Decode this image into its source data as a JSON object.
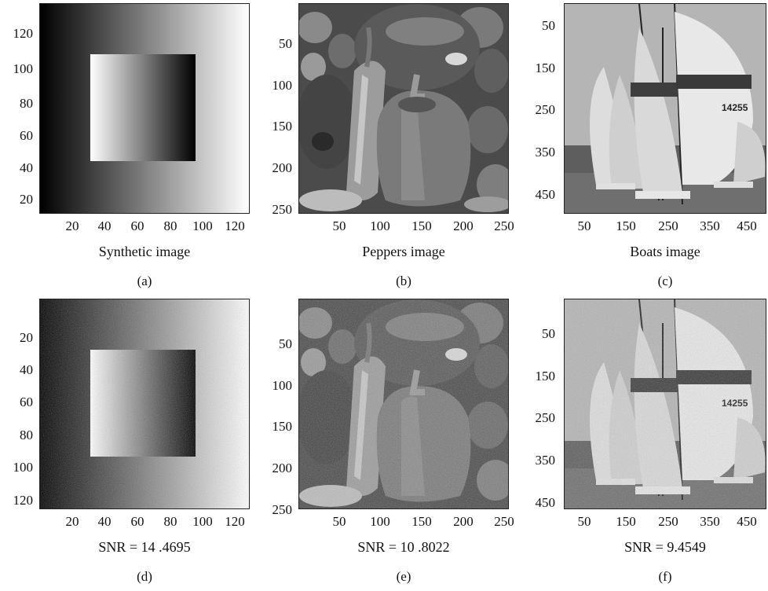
{
  "panels": [
    {
      "id": "a",
      "caption": "Synthetic image",
      "label": "(a)",
      "yticks": [
        "120",
        "100",
        "80",
        "60",
        "40",
        "20"
      ],
      "xticks": [
        "20",
        "40",
        "60",
        "80",
        "100",
        "120"
      ]
    },
    {
      "id": "b",
      "caption": "Peppers image",
      "label": "(b)",
      "yticks": [
        "50",
        "100",
        "150",
        "200",
        "250"
      ],
      "xticks": [
        "50",
        "100",
        "150",
        "200",
        "250"
      ]
    },
    {
      "id": "c",
      "caption": "Boats image",
      "label": "(c)",
      "yticks": [
        "50",
        "150",
        "250",
        "350",
        "450"
      ],
      "xticks": [
        "50",
        "150",
        "250",
        "350",
        "450"
      ]
    },
    {
      "id": "d",
      "caption": "SNR = 14 .4695",
      "label": "(d)",
      "yticks": [
        "20",
        "40",
        "60",
        "80",
        "100",
        "120"
      ],
      "xticks": [
        "20",
        "40",
        "60",
        "80",
        "100",
        "120"
      ]
    },
    {
      "id": "e",
      "caption": "SNR = 10 .8022",
      "label": "(e)",
      "yticks": [
        "50",
        "100",
        "150",
        "200",
        "250"
      ],
      "xticks": [
        "50",
        "100",
        "150",
        "200",
        "250"
      ]
    },
    {
      "id": "f",
      "caption": "SNR = 9.4549",
      "label": "(f)",
      "yticks": [
        "50",
        "150",
        "250",
        "350",
        "450"
      ],
      "xticks": [
        "50",
        "150",
        "250",
        "350",
        "450"
      ]
    }
  ],
  "boat_sail_number": "14255"
}
